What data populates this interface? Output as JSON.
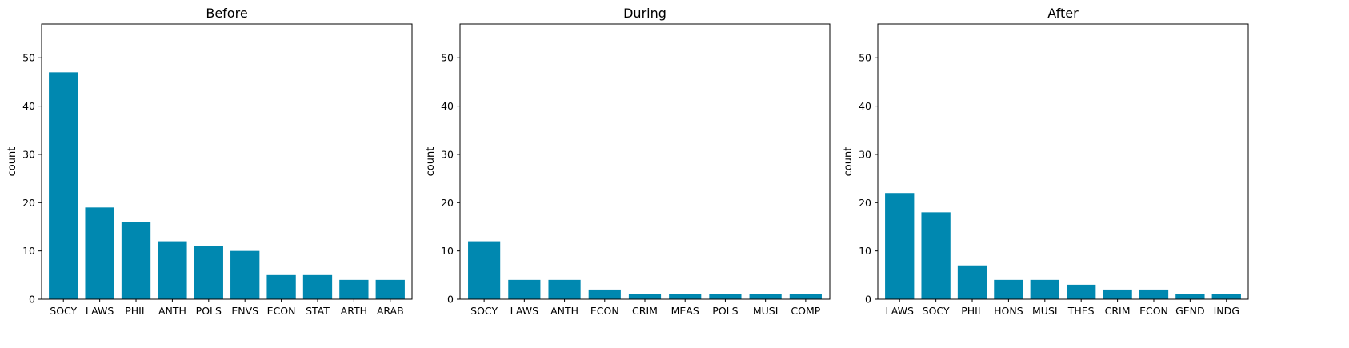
{
  "bar_color": "#0088b0",
  "chart_data": [
    {
      "type": "bar",
      "title": "Before",
      "xlabel": "",
      "ylabel": "count",
      "ylim": [
        0,
        57
      ],
      "yticks": [
        0,
        10,
        20,
        30,
        40,
        50
      ],
      "categories": [
        "SOCY",
        "LAWS",
        "PHIL",
        "ANTH",
        "POLS",
        "ENVS",
        "ECON",
        "STAT",
        "ARTH",
        "ARAB"
      ],
      "values": [
        47,
        19,
        16,
        12,
        11,
        10,
        5,
        5,
        4,
        4
      ]
    },
    {
      "type": "bar",
      "title": "During",
      "xlabel": "",
      "ylabel": "count",
      "ylim": [
        0,
        57
      ],
      "yticks": [
        0,
        10,
        20,
        30,
        40,
        50
      ],
      "categories": [
        "SOCY",
        "LAWS",
        "ANTH",
        "ECON",
        "CRIM",
        "MEAS",
        "POLS",
        "MUSI",
        "COMP"
      ],
      "values": [
        12,
        4,
        4,
        2,
        1,
        1,
        1,
        1,
        1
      ]
    },
    {
      "type": "bar",
      "title": "After",
      "xlabel": "",
      "ylabel": "count",
      "ylim": [
        0,
        57
      ],
      "yticks": [
        0,
        10,
        20,
        30,
        40,
        50
      ],
      "categories": [
        "LAWS",
        "SOCY",
        "PHIL",
        "HONS",
        "MUSI",
        "THES",
        "CRIM",
        "ECON",
        "GEND",
        "INDG"
      ],
      "values": [
        22,
        18,
        7,
        4,
        4,
        3,
        2,
        2,
        1,
        1
      ]
    }
  ]
}
